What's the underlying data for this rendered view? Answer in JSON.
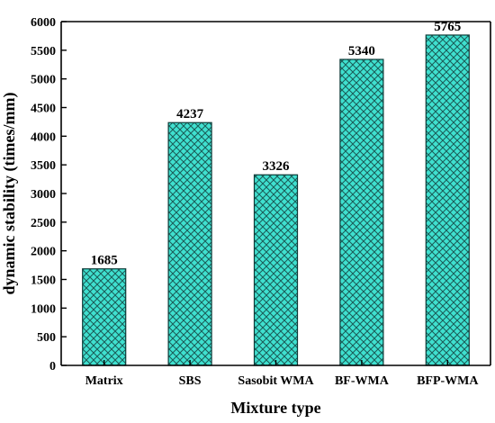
{
  "chart_data": {
    "type": "bar",
    "title": "",
    "xlabel": "Mixture type",
    "ylabel": "dynamic stability (times/mm)",
    "categories": [
      "Matrix",
      "SBS",
      "Sasobit WMA",
      "BF-WMA",
      "BFP-WMA"
    ],
    "values": [
      1685,
      4237,
      3326,
      5340,
      5765
    ],
    "data_labels": [
      "1685",
      "4237",
      "3326",
      "5340",
      "5765"
    ],
    "ylim": [
      0,
      6000
    ],
    "yticks": [
      0,
      500,
      1000,
      1500,
      2000,
      2500,
      3000,
      3500,
      4000,
      4500,
      5000,
      5500,
      6000
    ],
    "ytick_labels": [
      "0",
      "500",
      "1000",
      "1500",
      "2000",
      "2500",
      "3000",
      "3500",
      "4000",
      "4500",
      "5000",
      "5500",
      "6000"
    ],
    "grid": false,
    "legend": "none",
    "colors": {
      "bar_fill": "#3fe0cf",
      "bar_hatch": "#1a5a56",
      "bar_edge": "#0d3b38",
      "axis": "#000000"
    }
  }
}
